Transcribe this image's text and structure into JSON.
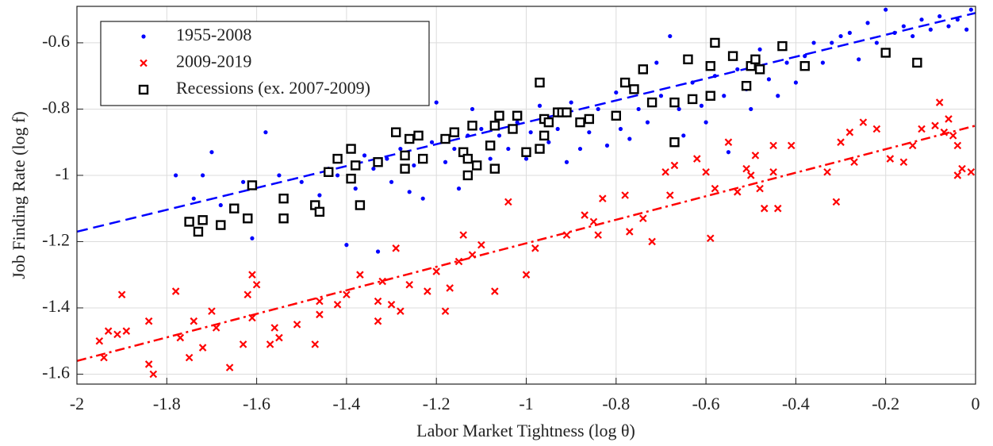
{
  "chart_data": {
    "type": "scatter",
    "x_label": "Labor Market Tightness (log θ)",
    "y_label": "Job Finding Rate (log f)",
    "xlim": [
      -2,
      0
    ],
    "ylim": [
      -1.63,
      -0.49
    ],
    "xticks": [
      -2,
      -1.8,
      -1.6,
      -1.4,
      -1.2,
      -1,
      -0.8,
      -0.6,
      -0.4,
      -0.2,
      0
    ],
    "yticks": [
      -1.6,
      -1.4,
      -1.2,
      -1,
      -0.8,
      -0.6
    ],
    "grid": true,
    "legend_position": "upper left",
    "series": [
      {
        "name": "1955-2008",
        "color": "#0000ff",
        "marker": "dot",
        "x": [
          -1.78,
          -1.74,
          -1.72,
          -1.7,
          -1.68,
          -1.63,
          -1.61,
          -1.58,
          -1.55,
          -1.5,
          -1.46,
          -1.44,
          -1.42,
          -1.4,
          -1.38,
          -1.36,
          -1.34,
          -1.33,
          -1.31,
          -1.3,
          -1.28,
          -1.26,
          -1.25,
          -1.23,
          -1.21,
          -1.2,
          -1.18,
          -1.16,
          -1.15,
          -1.13,
          -1.12,
          -1.1,
          -1.08,
          -1.06,
          -1.04,
          -1.02,
          -1.0,
          -0.99,
          -0.97,
          -0.95,
          -0.93,
          -0.91,
          -0.9,
          -0.88,
          -0.86,
          -0.84,
          -0.82,
          -0.8,
          -0.79,
          -0.77,
          -0.75,
          -0.73,
          -0.71,
          -0.7,
          -0.68,
          -0.66,
          -0.65,
          -0.63,
          -0.61,
          -0.6,
          -0.58,
          -0.56,
          -0.55,
          -0.53,
          -0.51,
          -0.5,
          -0.48,
          -0.46,
          -0.44,
          -0.42,
          -0.4,
          -0.38,
          -0.36,
          -0.34,
          -0.32,
          -0.3,
          -0.28,
          -0.26,
          -0.24,
          -0.22,
          -0.2,
          -0.18,
          -0.16,
          -0.14,
          -0.12,
          -0.1,
          -0.08,
          -0.06,
          -0.04,
          -0.02,
          -0.01
        ],
        "values": [
          -1.0,
          -1.07,
          -1.0,
          -0.93,
          -1.09,
          -1.02,
          -1.19,
          -0.87,
          -1.0,
          -1.02,
          -1.06,
          -0.98,
          -1.0,
          -1.21,
          -1.04,
          -0.94,
          -0.98,
          -1.23,
          -0.95,
          -1.02,
          -0.92,
          -1.05,
          -0.97,
          -1.07,
          -0.9,
          -0.78,
          -0.96,
          -0.92,
          -1.04,
          -0.88,
          -0.8,
          -0.86,
          -0.95,
          -0.88,
          -0.92,
          -0.84,
          -0.95,
          -0.87,
          -0.79,
          -0.9,
          -0.86,
          -0.96,
          -0.78,
          -0.92,
          -0.87,
          -0.8,
          -0.91,
          -0.75,
          -0.86,
          -0.89,
          -0.8,
          -0.84,
          -0.66,
          -0.76,
          -0.58,
          -0.8,
          -0.88,
          -0.72,
          -0.79,
          -0.84,
          -0.7,
          -0.76,
          -0.93,
          -0.68,
          -0.74,
          -0.8,
          -0.62,
          -0.71,
          -0.76,
          -0.66,
          -0.72,
          -0.64,
          -0.6,
          -0.66,
          -0.6,
          -0.58,
          -0.57,
          -0.65,
          -0.54,
          -0.6,
          -0.5,
          -0.57,
          -0.55,
          -0.58,
          -0.53,
          -0.56,
          -0.52,
          -0.55,
          -0.53,
          -0.56,
          -0.5
        ]
      },
      {
        "name": "2009-2019",
        "color": "#ff0000",
        "marker": "cross",
        "x": [
          -1.95,
          -1.94,
          -1.93,
          -1.91,
          -1.9,
          -1.89,
          -1.84,
          -1.84,
          -1.83,
          -1.78,
          -1.77,
          -1.75,
          -1.74,
          -1.72,
          -1.7,
          -1.69,
          -1.66,
          -1.63,
          -1.62,
          -1.61,
          -1.61,
          -1.6,
          -1.57,
          -1.56,
          -1.55,
          -1.51,
          -1.47,
          -1.46,
          -1.46,
          -1.42,
          -1.4,
          -1.37,
          -1.33,
          -1.33,
          -1.32,
          -1.3,
          -1.29,
          -1.28,
          -1.26,
          -1.22,
          -1.2,
          -1.18,
          -1.17,
          -1.15,
          -1.14,
          -1.12,
          -1.1,
          -1.07,
          -1.04,
          -1.0,
          -0.98,
          -0.91,
          -0.87,
          -0.85,
          -0.84,
          -0.83,
          -0.78,
          -0.77,
          -0.74,
          -0.72,
          -0.69,
          -0.68,
          -0.67,
          -0.62,
          -0.6,
          -0.59,
          -0.58,
          -0.55,
          -0.53,
          -0.51,
          -0.5,
          -0.49,
          -0.48,
          -0.47,
          -0.45,
          -0.45,
          -0.44,
          -0.41,
          -0.33,
          -0.31,
          -0.3,
          -0.28,
          -0.27,
          -0.25,
          -0.22,
          -0.19,
          -0.16,
          -0.14,
          -0.12,
          -0.09,
          -0.08,
          -0.07,
          -0.06,
          -0.05,
          -0.04,
          -0.04,
          -0.03,
          -0.01
        ],
        "values": [
          -1.5,
          -1.55,
          -1.47,
          -1.48,
          -1.36,
          -1.47,
          -1.44,
          -1.57,
          -1.6,
          -1.35,
          -1.49,
          -1.55,
          -1.44,
          -1.52,
          -1.41,
          -1.46,
          -1.58,
          -1.51,
          -1.36,
          -1.3,
          -1.43,
          -1.33,
          -1.51,
          -1.46,
          -1.49,
          -1.45,
          -1.51,
          -1.38,
          -1.42,
          -1.39,
          -1.36,
          -1.3,
          -1.38,
          -1.44,
          -1.32,
          -1.39,
          -1.22,
          -1.41,
          -1.33,
          -1.35,
          -1.29,
          -1.41,
          -1.34,
          -1.26,
          -1.18,
          -1.24,
          -1.21,
          -1.35,
          -1.08,
          -1.3,
          -1.22,
          -1.18,
          -1.12,
          -1.14,
          -1.18,
          -1.07,
          -1.06,
          -1.17,
          -1.13,
          -1.2,
          -0.99,
          -1.06,
          -0.97,
          -0.95,
          -0.99,
          -1.19,
          -1.04,
          -0.9,
          -1.05,
          -0.98,
          -1.0,
          -0.94,
          -1.04,
          -1.1,
          -0.91,
          -0.99,
          -1.1,
          -0.91,
          -0.99,
          -1.08,
          -0.9,
          -0.87,
          -0.96,
          -0.84,
          -0.86,
          -0.95,
          -0.96,
          -0.91,
          -0.86,
          -0.85,
          -0.78,
          -0.87,
          -0.83,
          -0.88,
          -0.91,
          -1.0,
          -0.98,
          -0.99
        ]
      },
      {
        "name": "Recessions (ex. 2007-2009)",
        "color": "#000000",
        "marker": "square",
        "x": [
          -1.75,
          -1.73,
          -1.72,
          -1.68,
          -1.65,
          -1.62,
          -1.61,
          -1.54,
          -1.54,
          -1.47,
          -1.46,
          -1.44,
          -1.42,
          -1.39,
          -1.39,
          -1.38,
          -1.37,
          -1.33,
          -1.29,
          -1.27,
          -1.26,
          -1.24,
          -1.27,
          -1.23,
          -1.18,
          -1.16,
          -1.14,
          -1.13,
          -1.12,
          -1.13,
          -1.11,
          -1.08,
          -1.06,
          -1.07,
          -1.07,
          -1.03,
          -1.02,
          -1.0,
          -0.97,
          -0.97,
          -0.96,
          -0.95,
          -0.96,
          -0.93,
          -0.92,
          -0.91,
          -0.88,
          -0.86,
          -0.8,
          -0.78,
          -0.76,
          -0.74,
          -0.72,
          -0.67,
          -0.67,
          -0.64,
          -0.63,
          -0.59,
          -0.59,
          -0.58,
          -0.54,
          -0.51,
          -0.5,
          -0.49,
          -0.48,
          -0.43,
          -0.38,
          -0.2,
          -0.13
        ],
        "values": [
          -1.14,
          -1.17,
          -1.135,
          -1.15,
          -1.1,
          -1.13,
          -1.03,
          -1.07,
          -1.13,
          -1.09,
          -1.11,
          -0.99,
          -0.95,
          -0.92,
          -1.01,
          -0.97,
          -1.09,
          -0.96,
          -0.87,
          -0.98,
          -0.89,
          -0.88,
          -0.94,
          -0.95,
          -0.89,
          -0.87,
          -0.93,
          -0.95,
          -0.85,
          -1.0,
          -0.97,
          -0.91,
          -0.82,
          -0.98,
          -0.85,
          -0.86,
          -0.82,
          -0.93,
          -0.72,
          -0.92,
          -0.83,
          -0.84,
          -0.88,
          -0.81,
          -0.81,
          -0.81,
          -0.84,
          -0.83,
          -0.82,
          -0.72,
          -0.74,
          -0.68,
          -0.78,
          -0.9,
          -0.78,
          -0.65,
          -0.77,
          -0.67,
          -0.76,
          -0.6,
          -0.64,
          -0.73,
          -0.67,
          -0.65,
          -0.68,
          -0.61,
          -0.67,
          -0.63,
          -0.66
        ]
      }
    ],
    "fit_lines": [
      {
        "color": "#0000ff",
        "style": "dashed",
        "x": [
          -2,
          0
        ],
        "values": [
          -1.17,
          -0.51
        ]
      },
      {
        "color": "#ff0000",
        "style": "dashdot",
        "x": [
          -2,
          0
        ],
        "values": [
          -1.56,
          -0.85
        ]
      }
    ]
  }
}
